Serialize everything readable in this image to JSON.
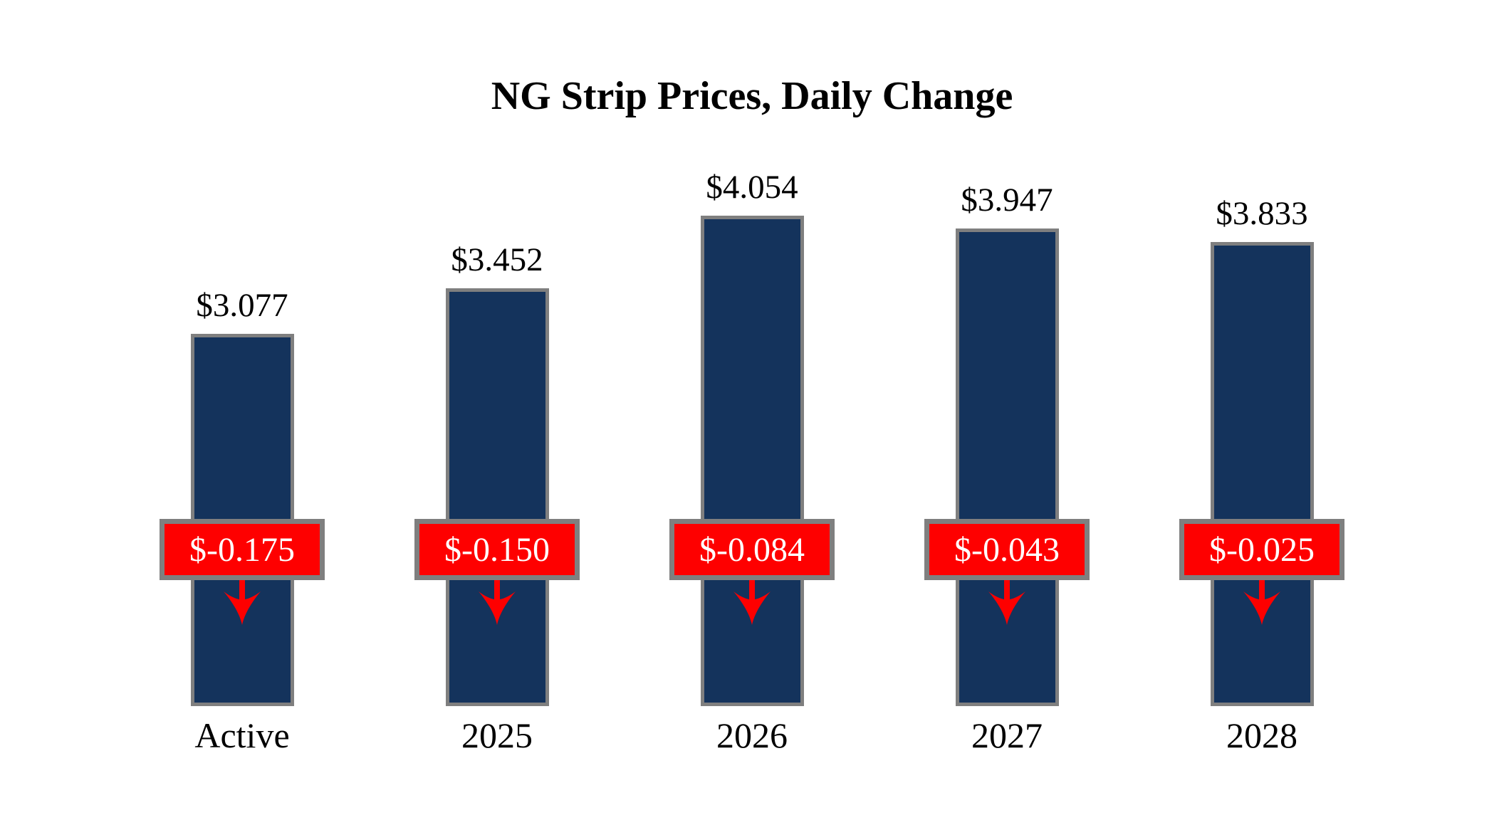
{
  "title": "NG Strip Prices, Daily Change",
  "chart_data": {
    "type": "bar",
    "title": "NG Strip Prices, Daily Change",
    "categories": [
      "Active",
      "2025",
      "2026",
      "2027",
      "2028"
    ],
    "series": [
      {
        "name": "Strip Price",
        "values": [
          3.077,
          3.452,
          4.054,
          3.947,
          3.833
        ]
      },
      {
        "name": "Daily Change",
        "values": [
          -0.175,
          -0.15,
          -0.084,
          -0.043,
          -0.025
        ]
      }
    ],
    "value_labels": [
      "$3.077",
      "$3.452",
      "$4.054",
      "$3.947",
      "$3.833"
    ],
    "change_labels": [
      "$-0.175",
      "$-0.150",
      "$-0.084",
      "$-0.043",
      "$-0.025"
    ],
    "xlabel": "",
    "ylabel": "",
    "ylim": [
      0,
      4.2
    ],
    "grid": false,
    "legend": "none",
    "colors": {
      "bar_fill": "#14335c",
      "bar_border": "#7f7f7f",
      "change_fill": "#fe0000",
      "change_border": "#7f7f7f",
      "change_text": "#ffffff",
      "arrow": "#fe0000",
      "text": "#000000",
      "background": "#ffffff"
    }
  }
}
